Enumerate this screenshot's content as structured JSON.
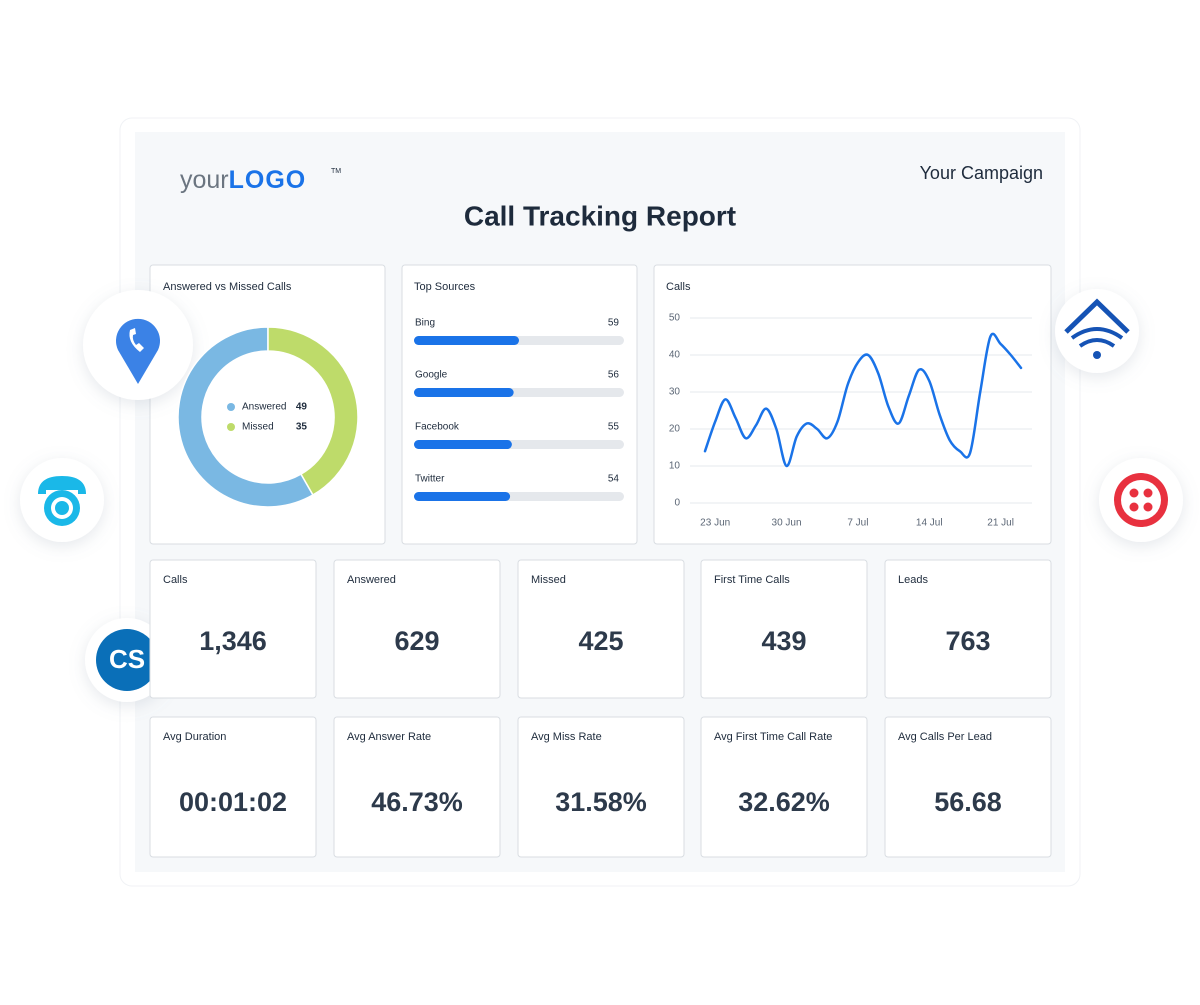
{
  "logo": {
    "prefix": "your",
    "brand": "LOGO",
    "mark": "TM"
  },
  "campaign": "Your Campaign",
  "title": "Call Tracking Report",
  "badge": "CS",
  "chart_data": [
    {
      "type": "donut",
      "title": "Answered vs Missed Calls",
      "categories": [
        "Answered",
        "Missed"
      ],
      "values": [
        49,
        35
      ],
      "colors": [
        "#7ab8e3",
        "#bedb6a"
      ]
    },
    {
      "type": "hbar",
      "title": "Top Sources",
      "categories": [
        "Bing",
        "Google",
        "Facebook",
        "Twitter"
      ],
      "values": [
        59,
        56,
        55,
        54
      ],
      "color": "#1a73e8",
      "xlim": [
        0,
        118
      ]
    },
    {
      "type": "line",
      "title": "Calls",
      "x": [
        null,
        "23 Jun",
        null,
        null,
        null,
        null,
        null,
        null,
        "30 Jun",
        null,
        null,
        null,
        null,
        null,
        null,
        "7 Jul",
        null,
        null,
        null,
        null,
        null,
        null,
        "14 Jul",
        null,
        null,
        null,
        null,
        null,
        null,
        "21 Jul",
        null,
        null
      ],
      "values": [
        14,
        22,
        28,
        23,
        17.5,
        21,
        25.5,
        20,
        10,
        18,
        21.5,
        20,
        17.5,
        22,
        32,
        38,
        40,
        35,
        26,
        21.5,
        29,
        36,
        33,
        24,
        17,
        14,
        13.5,
        30,
        45,
        43,
        40,
        36.5
      ],
      "color": "#1a73e8",
      "ylim": [
        0,
        50
      ],
      "yticks": [
        0,
        10,
        20,
        30,
        40,
        50
      ],
      "grid": true
    }
  ],
  "kpis": [
    {
      "label": "Calls",
      "value": "1,346"
    },
    {
      "label": "Answered",
      "value": "629"
    },
    {
      "label": "Missed",
      "value": "425"
    },
    {
      "label": "First Time Calls",
      "value": "439"
    },
    {
      "label": "Leads",
      "value": "763"
    },
    {
      "label": "Avg Duration",
      "value": "00:01:02"
    },
    {
      "label": "Avg Answer Rate",
      "value": "46.73%"
    },
    {
      "label": "Avg Miss Rate",
      "value": "31.58%"
    },
    {
      "label": "Avg First Time Call Rate",
      "value": "32.62%"
    },
    {
      "label": "Avg Calls Per Lead",
      "value": "56.68"
    }
  ]
}
